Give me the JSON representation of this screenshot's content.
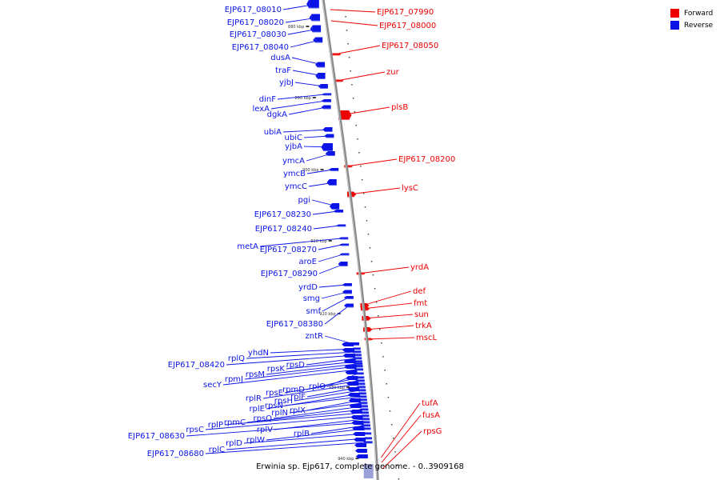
{
  "legend": {
    "forward_label": "Forward",
    "reverse_label": "Reverse",
    "forward_color": "#ee0000",
    "reverse_color": "#0a14e6"
  },
  "caption": "Erwinia sp. Ejp617, complete genome. - 0..3909168",
  "ticks": [
    "880 kbp",
    "890 kbp",
    "900 kbp",
    "910 kbp",
    "920 kbp",
    "930 kbp",
    "940 kbp"
  ],
  "forward_genes": [
    "EJP617_07990",
    "EJP617_08000",
    "EJP617_08050",
    "zur",
    "plsB",
    "EJP617_08200",
    "lysC",
    "yrdA",
    "def",
    "fmt",
    "sun",
    "trkA",
    "mscL",
    "tufA",
    "fusA",
    "rpsG"
  ],
  "reverse_genes": [
    "EJP617_08010",
    "EJP617_08020",
    "EJP617_08030",
    "EJP617_08040",
    "dusA",
    "traF",
    "yjbJ",
    "dinF",
    "lexA",
    "dgkA",
    "ubiA",
    "ubiC",
    "yjbA",
    "ymcA",
    "ymcB",
    "ymcC",
    "pgi",
    "EJP617_08230",
    "EJP617_08240",
    "metA",
    "EJP617_08270",
    "aroE",
    "EJP617_08290",
    "yrdD",
    "smg",
    "smf",
    "EJP617_08380",
    "zntR",
    "yhdN",
    "rplQ",
    "EJP617_08420",
    "rpsD",
    "rpsK",
    "rpsM",
    "rpmJ",
    "secY",
    "rplO",
    "rpmD",
    "rpsE",
    "rplR",
    "rplF",
    "rpsH",
    "rplE",
    "rpsN",
    "rplX",
    "rplN",
    "rpsQ",
    "rpmC",
    "rplP",
    "rpsC",
    "rplV",
    "EJP617_08630",
    "rplB",
    "rplW",
    "rplD",
    "rplC",
    "EJP617_08680"
  ]
}
